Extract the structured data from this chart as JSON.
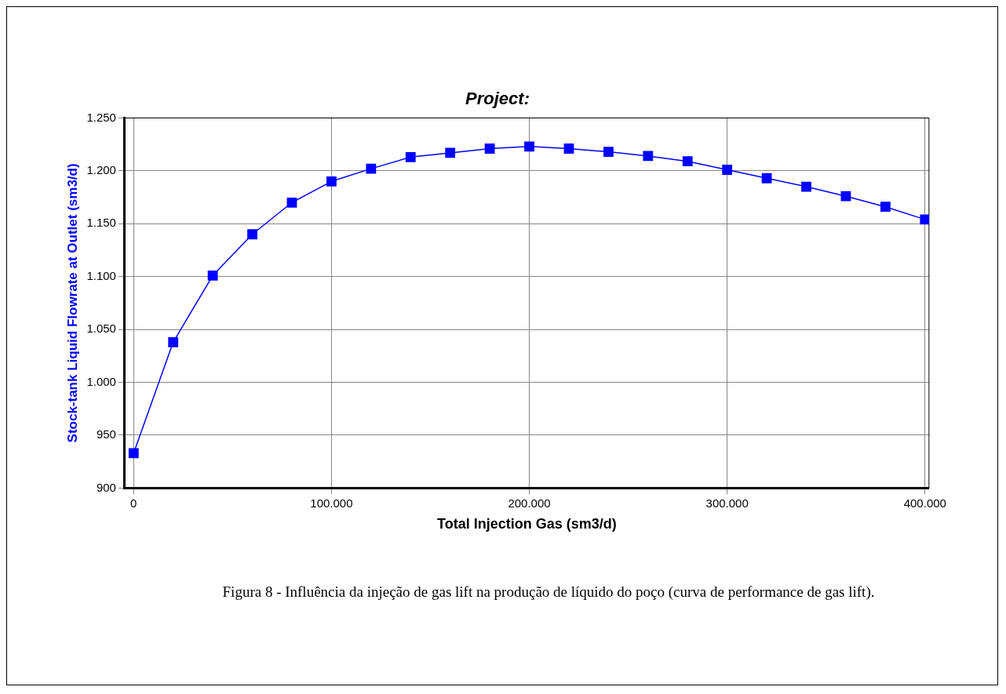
{
  "chart_data": {
    "type": "line",
    "title": "Project:",
    "xlabel": "Total Injection Gas (sm3/d)",
    "ylabel": "Stock-tank Liquid Flowrate at Outlet (sm3/d)",
    "x": [
      0,
      20000,
      40000,
      60000,
      80000,
      100000,
      120000,
      140000,
      160000,
      180000,
      200000,
      220000,
      240000,
      260000,
      280000,
      300000,
      320000,
      340000,
      360000,
      380000,
      400000
    ],
    "series": [
      {
        "color": "#0000ff",
        "values": [
          933,
          1038,
          1101,
          1140,
          1170,
          1190,
          1202,
          1213,
          1217,
          1221,
          1223,
          1221,
          1218,
          1214,
          1209,
          1201,
          1193,
          1185,
          1176,
          1166,
          1154
        ]
      }
    ],
    "xlim": [
      -4500,
      402000
    ],
    "ylim": [
      900,
      1250
    ],
    "xticks": [
      0,
      {
        "value": 100000,
        "label": "100.000"
      },
      {
        "value": 200000,
        "label": "200.000"
      },
      {
        "value": 300000,
        "label": "300.000"
      },
      {
        "value": 400000,
        "label": "400.000"
      }
    ],
    "yticks": [
      900,
      950,
      {
        "value": 1000,
        "label": "1.000"
      },
      {
        "value": 1050,
        "label": "1.050"
      },
      {
        "value": 1100,
        "label": "1.100"
      },
      {
        "value": 1150,
        "label": "1.150"
      },
      {
        "value": 1200,
        "label": "1.200"
      },
      {
        "value": 1250,
        "label": "1.250"
      }
    ],
    "grid": true,
    "marker": "square",
    "line_style": "solid",
    "legend": false,
    "annotations": [
      "Figura 8 - Influência da injeção de gas lift na produção de líquido do poço (curva de performance de gas lift)."
    ]
  }
}
